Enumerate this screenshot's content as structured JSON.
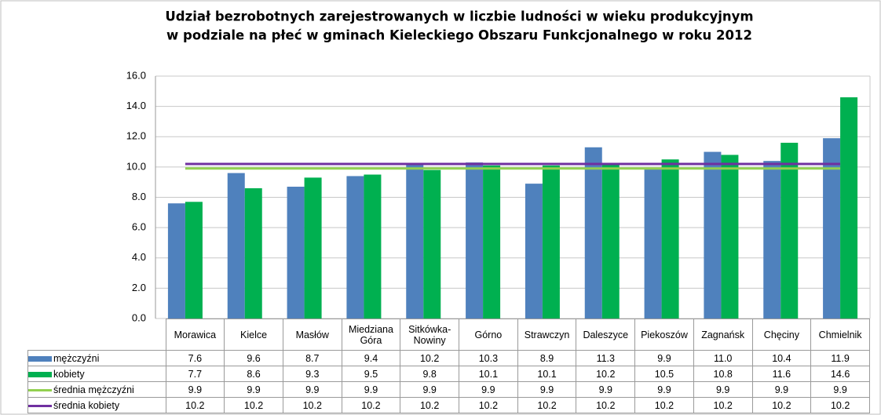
{
  "chart_data": {
    "type": "bar",
    "title": [
      "Udział bezrobotnych zarejestrowanych w liczbie ludności w wieku produkcyjnym",
      "w podziale na płeć w gminach Kieleckiego Obszaru Funkcjonalnego w roku 2012"
    ],
    "categories": [
      "Morawica",
      "Kielce",
      "Masłów",
      "Miedziana Góra",
      "Sitkówka-Nowiny",
      "Górno",
      "Strawczyn",
      "Daleszyce",
      "Piekoszów",
      "Zagnańsk",
      "Chęciny",
      "Chmielnik"
    ],
    "series": [
      {
        "name": "mężczyźni",
        "type": "bar",
        "color": "#4f81bd",
        "values": [
          7.6,
          9.6,
          8.7,
          9.4,
          10.2,
          10.3,
          8.9,
          11.3,
          9.9,
          11.0,
          10.4,
          11.9
        ],
        "value_labels": [
          "7.6",
          "9.6",
          "8.7",
          "9.4",
          "10.2",
          "10.3",
          "8.9",
          "11.3",
          "9.9",
          "11.0",
          "10.4",
          "11.9"
        ]
      },
      {
        "name": "kobiety",
        "type": "bar",
        "color": "#00b050",
        "values": [
          7.7,
          8.6,
          9.3,
          9.5,
          9.8,
          10.1,
          10.1,
          10.2,
          10.5,
          10.8,
          11.6,
          14.6
        ],
        "value_labels": [
          "7.7",
          "8.6",
          "9.3",
          "9.5",
          "9.8",
          "10.1",
          "10.1",
          "10.2",
          "10.5",
          "10.8",
          "11.6",
          "14.6"
        ]
      },
      {
        "name": "średnia mężczyźni",
        "type": "line",
        "color": "#92d050",
        "values": [
          9.9,
          9.9,
          9.9,
          9.9,
          9.9,
          9.9,
          9.9,
          9.9,
          9.9,
          9.9,
          9.9,
          9.9
        ],
        "value_labels": [
          "9.9",
          "9.9",
          "9.9",
          "9.9",
          "9.9",
          "9.9",
          "9.9",
          "9.9",
          "9.9",
          "9.9",
          "9.9",
          "9.9"
        ]
      },
      {
        "name": "średnia kobiety",
        "type": "line",
        "color": "#7030a0",
        "values": [
          10.2,
          10.2,
          10.2,
          10.2,
          10.2,
          10.2,
          10.2,
          10.2,
          10.2,
          10.2,
          10.2,
          10.2
        ],
        "value_labels": [
          "10.2",
          "10.2",
          "10.2",
          "10.2",
          "10.2",
          "10.2",
          "10.2",
          "10.2",
          "10.2",
          "10.2",
          "10.2",
          "10.2"
        ]
      }
    ],
    "ylim": [
      0,
      16
    ],
    "yticks": [
      {
        "value": 0,
        "label": "0.0"
      },
      {
        "value": 2,
        "label": "2.0"
      },
      {
        "value": 4,
        "label": "4.0"
      },
      {
        "value": 6,
        "label": "6.0"
      },
      {
        "value": 8,
        "label": "8.0"
      },
      {
        "value": 10,
        "label": "10.0"
      },
      {
        "value": 12,
        "label": "12.0"
      },
      {
        "value": 14,
        "label": "14.0"
      },
      {
        "value": 16,
        "label": "16.0"
      }
    ],
    "grid": true
  }
}
